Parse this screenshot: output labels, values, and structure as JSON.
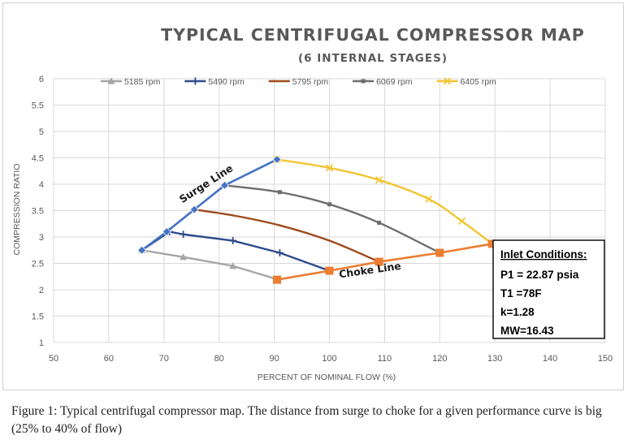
{
  "chart_data": {
    "type": "line",
    "title": "TYPICAL CENTRIFUGAL COMPRESSOR MAP",
    "subtitle": "(6 INTERNAL STAGES)",
    "xlabel": "PERCENT OF NOMINAL FLOW (%)",
    "ylabel": "COMPRESSION RATIO",
    "xlim": [
      50,
      150
    ],
    "ylim": [
      1,
      6
    ],
    "xticks": [
      "50",
      "60",
      "70",
      "80",
      "90",
      "100",
      "110",
      "120",
      "130",
      "140",
      "150"
    ],
    "yticks": [
      "1",
      "1.5",
      "2",
      "2.5",
      "3",
      "3.5",
      "4",
      "4.5",
      "5",
      "5.5",
      "6"
    ],
    "grid": "both",
    "legend_position": "top",
    "series": [
      {
        "name": "5185 rpm",
        "color": "#a5a5a5",
        "marker": "triangle",
        "smooth": false,
        "points": [
          [
            66,
            2.75
          ],
          [
            73.5,
            2.62
          ],
          [
            82.5,
            2.45
          ],
          [
            90.5,
            2.2
          ]
        ]
      },
      {
        "name": "5490 rpm",
        "color": "#2f4b8c",
        "marker": "plus",
        "smooth": false,
        "points": [
          [
            66,
            2.75
          ],
          [
            71,
            3.1
          ],
          [
            73.5,
            3.05
          ],
          [
            82.5,
            2.93
          ],
          [
            91,
            2.7
          ],
          [
            100,
            2.36
          ]
        ]
      },
      {
        "name": "5795 rpm",
        "color": "#9e4a1c",
        "marker": "none",
        "smooth": true,
        "points": [
          [
            75.5,
            3.52
          ],
          [
            83,
            3.4
          ],
          [
            91,
            3.22
          ],
          [
            100,
            2.93
          ],
          [
            109,
            2.53
          ]
        ]
      },
      {
        "name": "6069 rpm",
        "color": "#6e6e6e",
        "marker": "square-small",
        "smooth": true,
        "points": [
          [
            81,
            3.98
          ],
          [
            91,
            3.85
          ],
          [
            100,
            3.62
          ],
          [
            109,
            3.27
          ],
          [
            120,
            2.7
          ]
        ]
      },
      {
        "name": "6405 rpm",
        "color": "#f2c533",
        "marker": "x",
        "smooth": true,
        "points": [
          [
            90.5,
            4.47
          ],
          [
            100,
            4.31
          ],
          [
            109,
            4.08
          ],
          [
            118,
            3.72
          ],
          [
            124,
            3.3
          ],
          [
            129.5,
            2.87
          ]
        ]
      }
    ],
    "surge_line": {
      "label": "Surge Line",
      "color": "#4472c4",
      "points": [
        [
          66,
          2.75
        ],
        [
          70.5,
          3.1
        ],
        [
          75.5,
          3.52
        ],
        [
          81,
          3.98
        ],
        [
          90.5,
          4.47
        ]
      ]
    },
    "choke_line": {
      "label": "Choke Line",
      "color": "#ed7d31",
      "points": [
        [
          90.5,
          2.19
        ],
        [
          100,
          2.36
        ],
        [
          109,
          2.53
        ],
        [
          120,
          2.7
        ],
        [
          129.5,
          2.87
        ]
      ]
    },
    "annotation_box": {
      "title": "Inlet Conditions:",
      "lines": [
        "P1 = 22.87 psia",
        "T1 =78F",
        "k=1.28",
        "MW=16.43"
      ]
    }
  },
  "caption": "Figure 1: Typical centrifugal compressor map. The distance from surge to choke for a given performance curve is big (25% to 40% of flow)"
}
